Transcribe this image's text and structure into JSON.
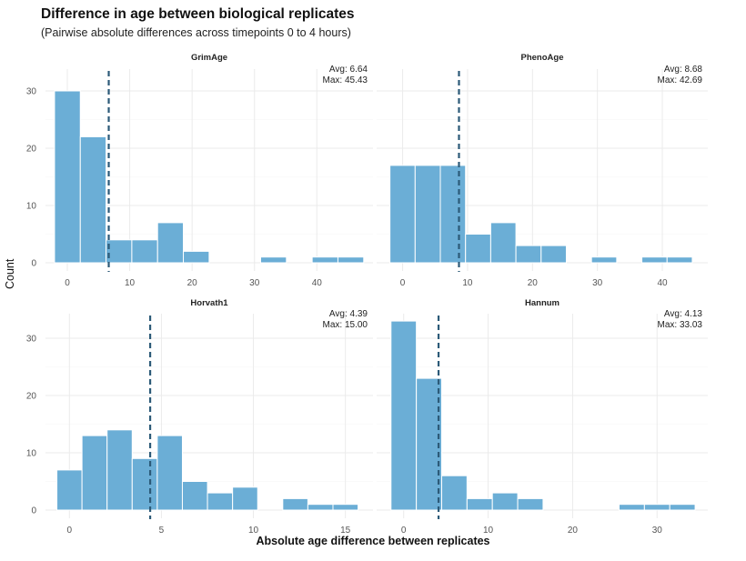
{
  "title": "Difference in age between biological replicates",
  "subtitle": "(Pairwise absolute differences across timepoints 0 to 4 hours)",
  "colors": {
    "bar": "#6baed6",
    "bar_stroke": "#ffffff",
    "mean_line": "#2c5a78",
    "grid": "#ebebeb"
  },
  "chart_data": {
    "type": "bar",
    "subtype": "faceted-histogram",
    "title": "Difference in age between biological replicates",
    "subtitle": "(Pairwise absolute differences across timepoints 0 to 4 hours)",
    "xlabel": "Absolute age difference between replicates",
    "ylabel": "Count",
    "grid": true,
    "y_ticks": [
      0,
      10,
      20,
      30
    ],
    "ylim": [
      0,
      33
    ],
    "panels": [
      {
        "name": "GrimAge",
        "avg_label": "Avg: 6.64",
        "max_label": "Max: 45.43",
        "mean": 6.64,
        "xlim": [
          -3.5,
          49
        ],
        "x_ticks": [
          0,
          10,
          20,
          30,
          40
        ],
        "bin_start": -2.05,
        "bin_width": 4.13,
        "counts": [
          30,
          22,
          4,
          4,
          7,
          2,
          0,
          0,
          1,
          0,
          1,
          1
        ]
      },
      {
        "name": "PhenoAge",
        "avg_label": "Avg: 8.68",
        "max_label": "Max: 42.69",
        "mean": 8.68,
        "xlim": [
          -4,
          47
        ],
        "x_ticks": [
          0,
          10,
          20,
          30,
          40
        ],
        "bin_start": -1.95,
        "bin_width": 3.88,
        "counts": [
          17,
          17,
          17,
          5,
          7,
          3,
          3,
          0,
          1,
          0,
          1,
          1
        ]
      },
      {
        "name": "Horvath1",
        "avg_label": "Avg: 4.39",
        "max_label": "Max: 15.00",
        "mean": 4.39,
        "xlim": [
          -1.3,
          16.5
        ],
        "x_ticks": [
          0,
          5,
          10,
          15
        ],
        "bin_start": -0.68,
        "bin_width": 1.364,
        "counts": [
          7,
          13,
          14,
          9,
          13,
          5,
          3,
          4,
          0,
          2,
          1,
          1
        ]
      },
      {
        "name": "Hannum",
        "avg_label": "Avg: 4.13",
        "max_label": "Max: 33.03",
        "mean": 4.13,
        "xlim": [
          -3.2,
          36
        ],
        "x_ticks": [
          0,
          10,
          20,
          30
        ],
        "bin_start": -1.5,
        "bin_width": 3.0,
        "counts": [
          33,
          23,
          6,
          2,
          3,
          2,
          0,
          0,
          0,
          1,
          1,
          1
        ]
      }
    ]
  }
}
